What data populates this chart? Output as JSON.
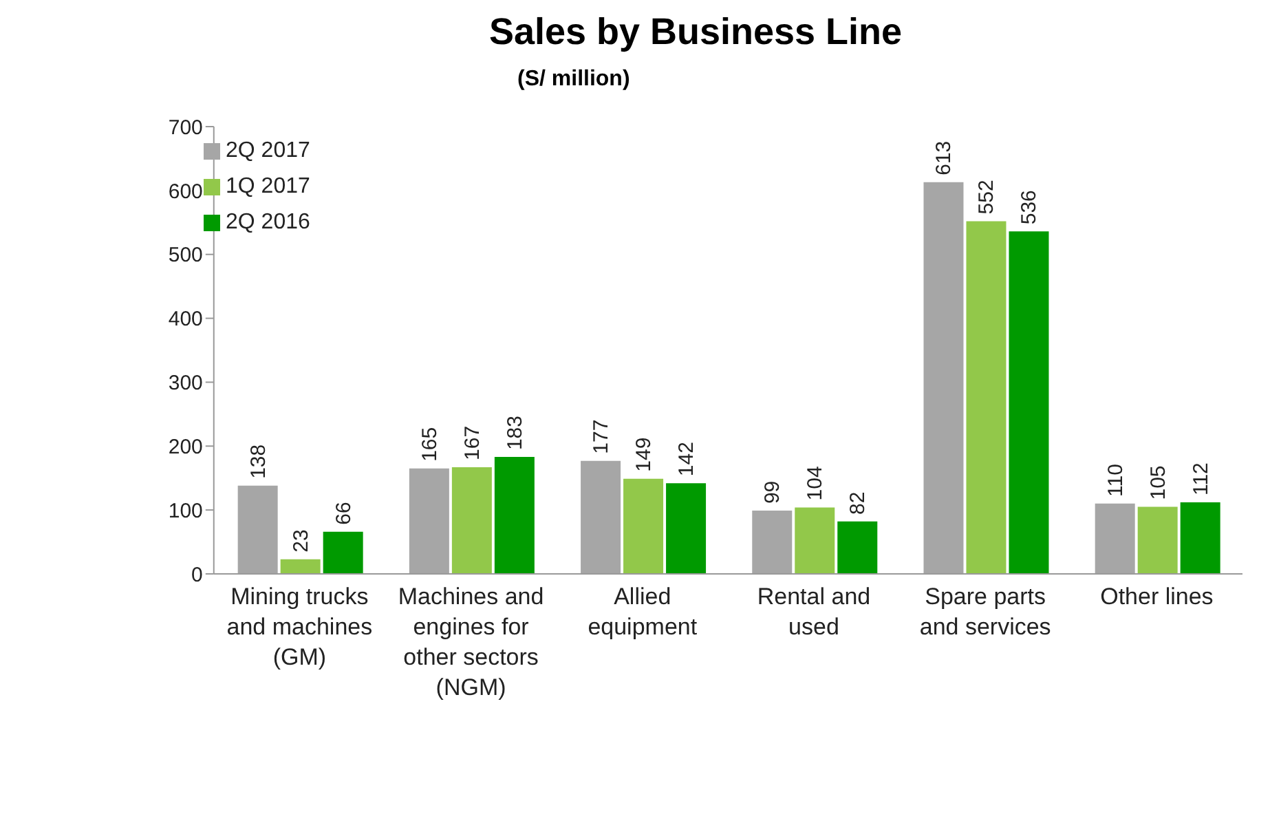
{
  "chart_data": {
    "type": "bar",
    "title": "Sales by Business Line",
    "subtitle": "(S/ million)",
    "categories": [
      "Mining trucks and machines (GM)",
      "Machines and engines for other sectors (NGM)",
      "Allied equipment",
      "Rental and used",
      "Spare parts and services",
      "Other lines"
    ],
    "series": [
      {
        "name": "2Q 2017",
        "color": "#a6a6a6",
        "values": [
          138,
          165,
          177,
          99,
          613,
          110
        ]
      },
      {
        "name": "1Q 2017",
        "color": "#92c84a",
        "values": [
          23,
          167,
          149,
          104,
          552,
          105
        ]
      },
      {
        "name": "2Q 2016",
        "color": "#009a00",
        "values": [
          66,
          183,
          142,
          82,
          536,
          112
        ]
      }
    ],
    "ylim": [
      0,
      700
    ],
    "yticks": [
      0,
      100,
      200,
      300,
      400,
      500,
      600,
      700
    ],
    "grid": false,
    "legend": "top left",
    "data_labels": true
  }
}
